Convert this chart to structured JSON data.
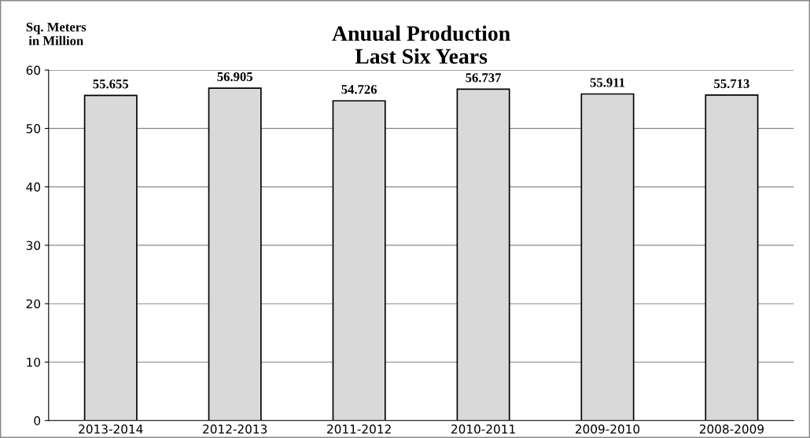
{
  "chart_data": {
    "type": "bar",
    "title": "Anuual Production\nLast Six Years",
    "ylabel": "Sq. Meters\nin Million",
    "categories": [
      "2013-2014",
      "2012-2013",
      "2011-2012",
      "2010-2011",
      "2009-2010",
      "2008-2009"
    ],
    "values": [
      55.655,
      56.905,
      54.726,
      56.737,
      55.911,
      55.713
    ],
    "color": "#d9d9d9",
    "ylim": [
      0,
      60
    ],
    "yticks": [
      0,
      10,
      20,
      30,
      40,
      50,
      60
    ],
    "grid": "y",
    "data_labels": true,
    "legend": false
  }
}
